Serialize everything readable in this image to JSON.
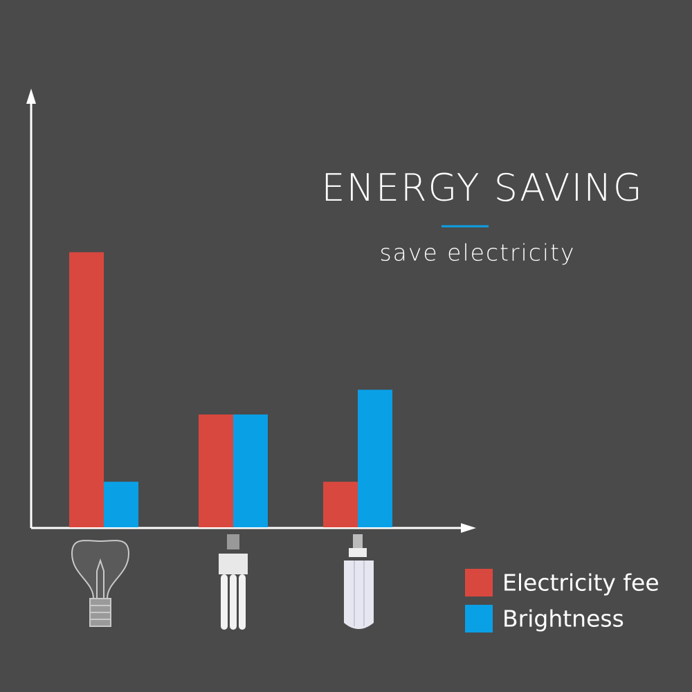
{
  "chart_data": {
    "type": "bar",
    "title": "ENERGY SAVING",
    "subtitle": "save electricity",
    "categories": [
      null,
      null,
      null
    ],
    "series": [
      {
        "name": "Electricity fee",
        "color": "#d9483e",
        "values": [
          63.4,
          26,
          10.5
        ]
      },
      {
        "name": "Brightness",
        "color": "#0aa0e6",
        "values": [
          10.5,
          26,
          31.7
        ]
      }
    ],
    "ylim": [
      0,
      100
    ],
    "legend": "bottom-right"
  }
}
